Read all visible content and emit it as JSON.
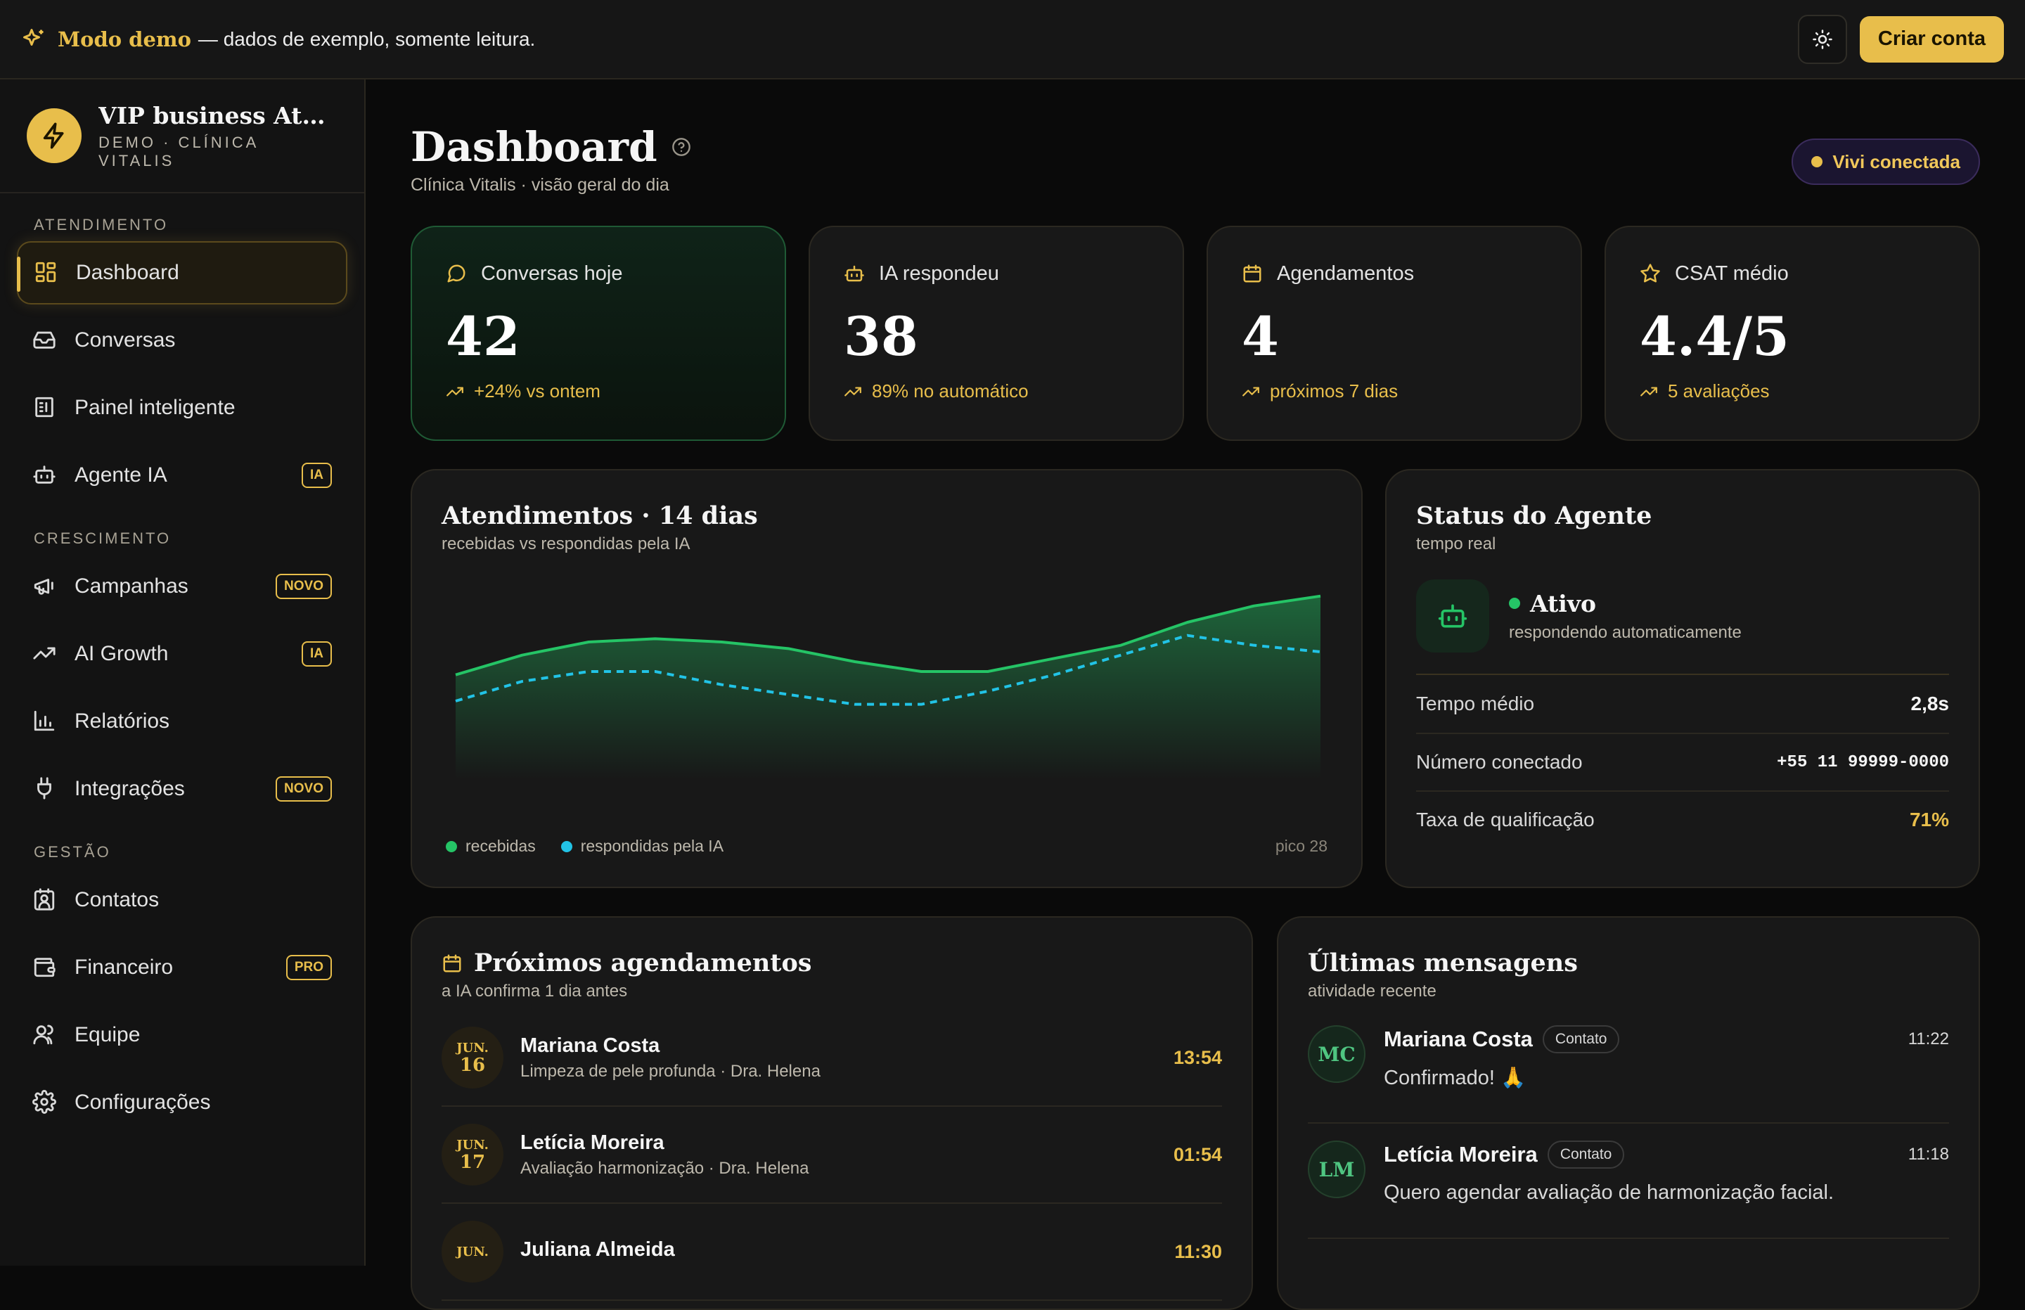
{
  "topbar": {
    "demo_label": "Modo demo",
    "demo_text": "— dados de exemplo, somente leitura.",
    "theme_icon": "sun-icon",
    "cta_label": "Criar conta"
  },
  "sidebar": {
    "brand_name": "VIP business Atendimento",
    "brand_sub": "DEMO · CLÍNICA VITALIS",
    "sections": [
      {
        "title": "ATENDIMENTO",
        "items": [
          {
            "label": "Dashboard",
            "icon": "grid-icon",
            "active": true
          },
          {
            "label": "Conversas",
            "icon": "inbox-icon"
          },
          {
            "label": "Painel inteligente",
            "icon": "panel-icon"
          },
          {
            "label": "Agente IA",
            "icon": "bot-icon",
            "badge": "IA"
          }
        ]
      },
      {
        "title": "CRESCIMENTO",
        "items": [
          {
            "label": "Campanhas",
            "icon": "megaphone-icon",
            "badge": "NOVO"
          },
          {
            "label": "AI Growth",
            "icon": "trending-up-icon",
            "badge": "IA"
          },
          {
            "label": "Relatórios",
            "icon": "bar-chart-icon"
          },
          {
            "label": "Integrações",
            "icon": "plug-icon",
            "badge": "NOVO"
          }
        ]
      },
      {
        "title": "GESTÃO",
        "items": [
          {
            "label": "Contatos",
            "icon": "contact-icon"
          },
          {
            "label": "Financeiro",
            "icon": "wallet-icon",
            "badge": "PRO"
          },
          {
            "label": "Equipe",
            "icon": "users-icon"
          },
          {
            "label": "Configurações",
            "icon": "gear-icon"
          }
        ]
      }
    ]
  },
  "header": {
    "title": "Dashboard",
    "subtitle": "Clínica Vitalis · visão geral do dia",
    "status": "Vivi conectada"
  },
  "stats": [
    {
      "label": "Conversas hoje",
      "icon": "chat-icon",
      "value": "42",
      "delta": "+24% vs ontem"
    },
    {
      "label": "IA respondeu",
      "icon": "bot-icon",
      "value": "38",
      "delta": "89% no automático"
    },
    {
      "label": "Agendamentos",
      "icon": "calendar-icon",
      "value": "4",
      "delta": "próximos 7 dias"
    },
    {
      "label": "CSAT médio",
      "icon": "star-icon",
      "value": "4.4/5",
      "delta": "5 avaliações"
    }
  ],
  "chart_card": {
    "title": "Atendimentos · 14 dias",
    "subtitle": "recebidas vs respondidas pela IA",
    "peak": "pico 28"
  },
  "chart_data": {
    "type": "area",
    "x": [
      1,
      2,
      3,
      4,
      5,
      6,
      7,
      8,
      9,
      10,
      11,
      12,
      13,
      14
    ],
    "series": [
      {
        "name": "recebidas",
        "color": "#25c466",
        "values": [
          16,
          19,
          21,
          21.5,
          21,
          20,
          18,
          16.5,
          16.5,
          18.5,
          20.5,
          24,
          26.5,
          28
        ]
      },
      {
        "name": "respondidas pela IA",
        "color": "#22c3e6",
        "values": [
          12,
          15,
          16.5,
          16.5,
          14.5,
          13,
          11.5,
          11.5,
          13.5,
          16,
          19,
          22,
          20.5,
          19.5
        ]
      }
    ],
    "ylim": [
      0,
      30
    ],
    "grid": false,
    "legend": "bottom-left"
  },
  "agent": {
    "title": "Status do Agente",
    "subtitle": "tempo real",
    "status": "Ativo",
    "status_sub": "respondendo automaticamente",
    "rows": [
      {
        "label": "Tempo médio",
        "value": "2,8s"
      },
      {
        "label": "Número conectado",
        "value": "+55 11 99999-0000"
      },
      {
        "label": "Taxa de qualificação",
        "value": "71%"
      }
    ]
  },
  "appointments": {
    "title": "Próximos agendamentos",
    "subtitle": "a IA confirma 1 dia antes",
    "items": [
      {
        "month": "JUN.",
        "day": "16",
        "name": "Mariana Costa",
        "desc": "Limpeza de pele profunda · Dra. Helena",
        "time": "13:54"
      },
      {
        "month": "JUN.",
        "day": "17",
        "name": "Letícia Moreira",
        "desc": "Avaliação harmonização · Dra. Helena",
        "time": "01:54"
      },
      {
        "month": "JUN.",
        "day": "",
        "name": "Juliana Almeida",
        "desc": "",
        "time": "11:30"
      }
    ]
  },
  "messages": {
    "title": "Últimas mensagens",
    "subtitle": "atividade recente",
    "items": [
      {
        "initials": "MC",
        "name": "Mariana Costa",
        "tag": "Contato",
        "time": "11:22",
        "text": "Confirmado! 🙏"
      },
      {
        "initials": "LM",
        "name": "Letícia Moreira",
        "tag": "Contato",
        "time": "11:18",
        "text": "Quero agendar avaliação de harmonização facial."
      }
    ]
  }
}
